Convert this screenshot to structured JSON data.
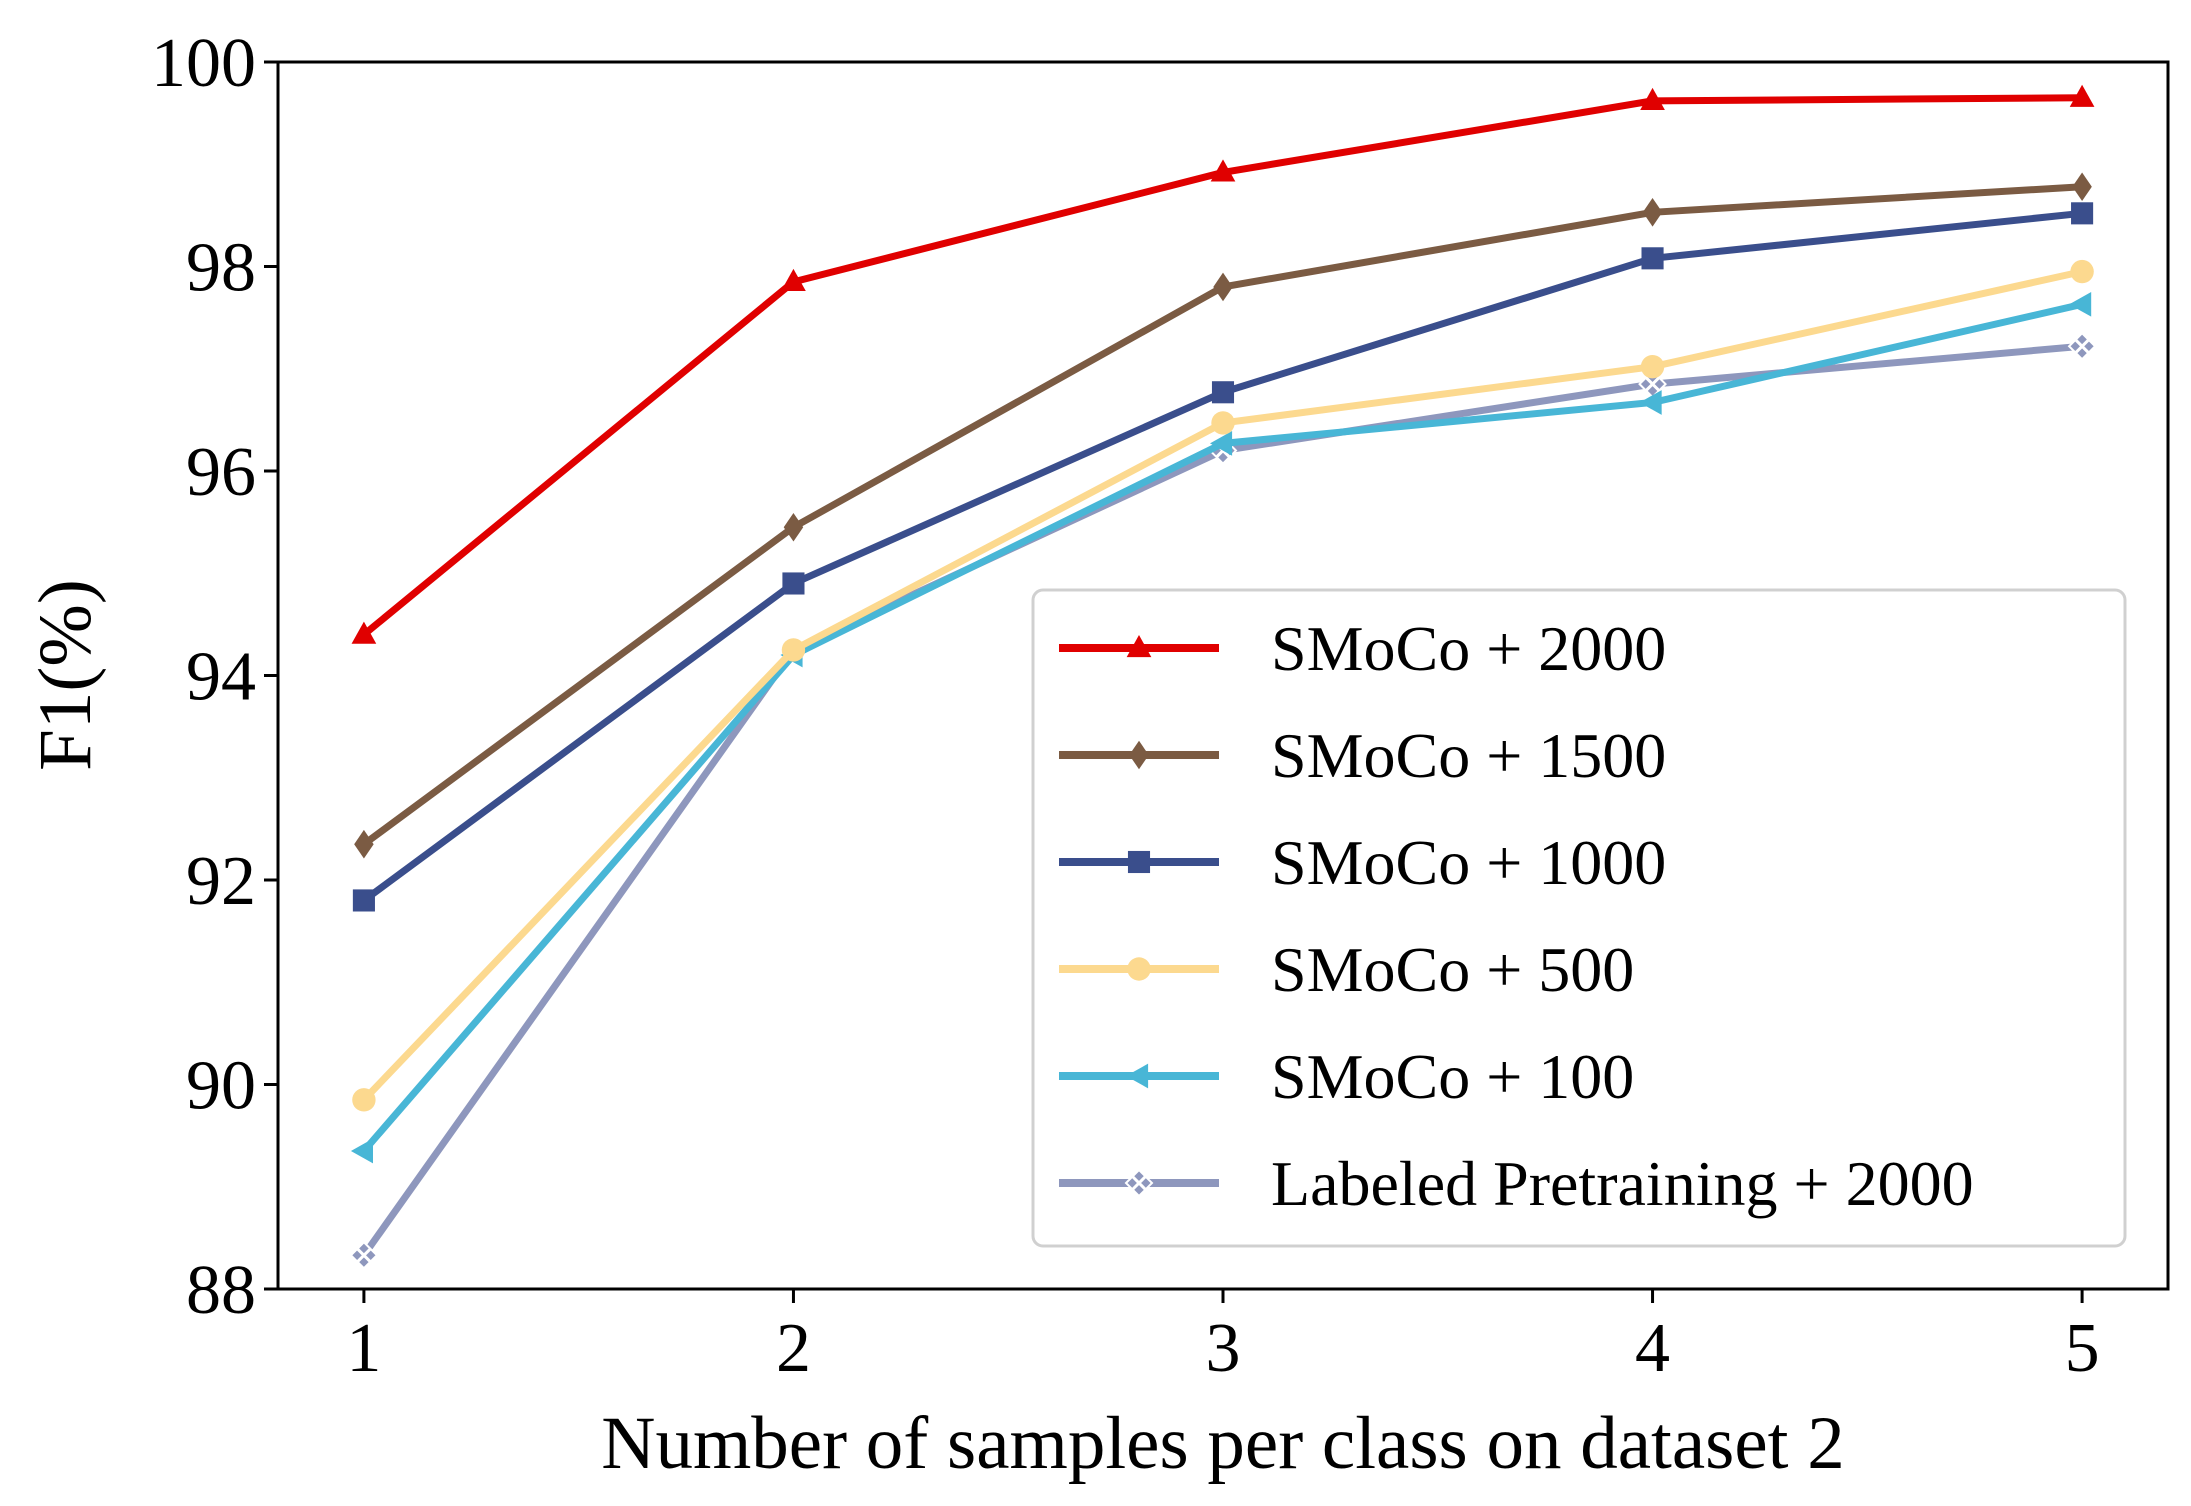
{
  "chart_data": {
    "type": "line",
    "title": "",
    "xlabel": "Number of samples per class on dataset 2",
    "ylabel": "F1(%)",
    "x": [
      1,
      2,
      3,
      4,
      5
    ],
    "xticks": [
      "1",
      "2",
      "3",
      "4",
      "5"
    ],
    "xlim": [
      0.8,
      5.2
    ],
    "ylim": [
      88,
      100
    ],
    "yticks": [
      "88",
      "90",
      "92",
      "94",
      "96",
      "98",
      "100"
    ],
    "grid": false,
    "legend_position": "lower-right",
    "series": [
      {
        "name": "SMoCo + 2000",
        "values": [
          94.4,
          97.85,
          98.92,
          99.62,
          99.65
        ],
        "color": "#e00000",
        "marker": "triangle-up"
      },
      {
        "name": "SMoCo + 1500",
        "values": [
          92.35,
          95.45,
          97.8,
          98.53,
          98.78
        ],
        "color": "#7b5b43",
        "marker": "diamond"
      },
      {
        "name": "SMoCo + 1000",
        "values": [
          91.8,
          94.9,
          96.77,
          98.08,
          98.52
        ],
        "color": "#3a4e8c",
        "marker": "square"
      },
      {
        "name": "SMoCo + 500",
        "values": [
          89.85,
          94.25,
          96.47,
          97.02,
          97.95
        ],
        "color": "#fcd98f",
        "marker": "circle"
      },
      {
        "name": "SMoCo + 100",
        "values": [
          89.35,
          94.2,
          96.27,
          96.67,
          97.63
        ],
        "color": "#48b6d6",
        "marker": "triangle-left"
      },
      {
        "name": "Labeled Pretraining + 2000",
        "values": [
          88.33,
          94.25,
          96.2,
          96.85,
          97.22
        ],
        "color": "#8e97bd",
        "marker": "x-diamond"
      }
    ]
  }
}
